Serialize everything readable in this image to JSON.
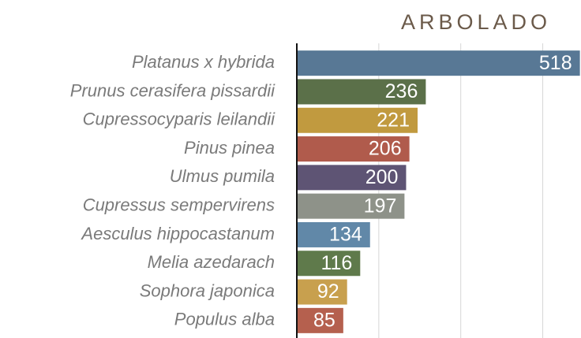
{
  "chart_data": {
    "type": "hbar",
    "title": "ARBOLADO",
    "categories": [
      "Platanus x hybrida",
      "Prunus cerasifera pissardii",
      "Cupressocyparis leilandii",
      "Pinus pinea",
      "Ulmus pumila",
      "Cupressus sempervirens",
      "Aesculus hippocastanum",
      "Melia azedarach",
      "Sophora japonica",
      "Populus alba"
    ],
    "values": [
      518,
      236,
      221,
      206,
      200,
      197,
      134,
      116,
      92,
      85
    ],
    "colors": [
      "#587895",
      "#5b7049",
      "#c19a3f",
      "#b05b4c",
      "#5e5474",
      "#8e9289",
      "#6188a8",
      "#5f7a4b",
      "#c8a04e",
      "#b5604e"
    ],
    "xlim": [
      0,
      520
    ],
    "xticks": [
      150,
      300,
      450
    ],
    "grid": true
  }
}
